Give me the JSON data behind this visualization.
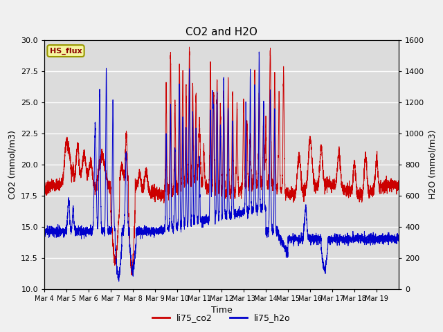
{
  "title": "CO2 and H2O",
  "xlabel": "Time",
  "ylabel_left": "CO2 (mmol/m3)",
  "ylabel_right": "H2O (mmol/m3)",
  "ylim_left": [
    10,
    30
  ],
  "ylim_right": [
    0,
    1600
  ],
  "plot_bg_color": "#dcdcdc",
  "fig_bg_color": "#f0f0f0",
  "co2_color": "#cc0000",
  "h2o_color": "#0000cc",
  "xtick_labels": [
    "Mar 4",
    "Mar 5",
    "Mar 6",
    "Mar 7",
    "Mar 8",
    "Mar 9",
    "Mar 10",
    "Mar 11",
    "Mar 12",
    "Mar 13",
    "Mar 14",
    "Mar 15",
    "Mar 16",
    "Mar 17",
    "Mar 18",
    "Mar 19"
  ],
  "legend_label_co2": "li75_co2",
  "legend_label_h2o": "li75_h2o",
  "dataset_label": "HS_flux",
  "title_fontsize": 11,
  "axis_label_fontsize": 9,
  "tick_fontsize": 8
}
